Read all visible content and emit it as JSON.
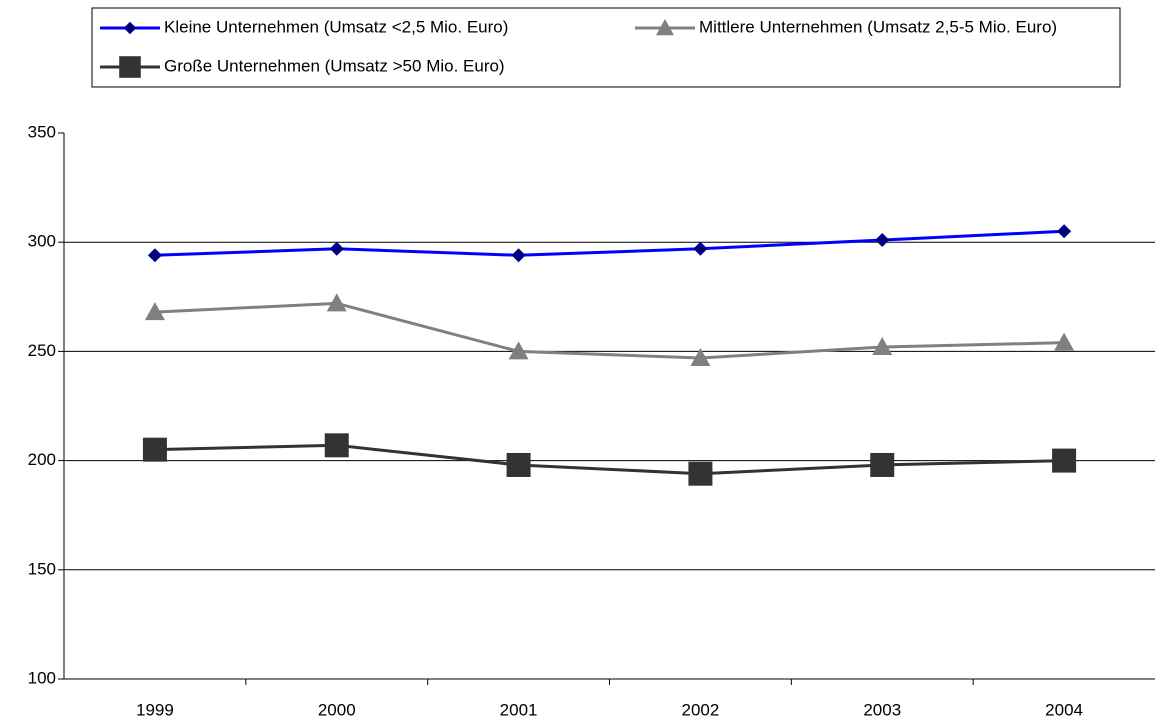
{
  "chart_data": {
    "type": "line",
    "categories": [
      "1999",
      "2000",
      "2001",
      "2002",
      "2003",
      "2004"
    ],
    "series": [
      {
        "name": "Kleine Unternehmen (Umsatz <2,5 Mio. Euro)",
        "color": "#0000ff",
        "marker_color": "#000080",
        "marker": "diamond",
        "values": [
          294,
          297,
          294,
          297,
          301,
          305
        ]
      },
      {
        "name": "Mittlere Unternehmen (Umsatz 2,5-5 Mio. Euro)",
        "color": "#808080",
        "marker_color": "#808080",
        "marker": "triangle",
        "values": [
          268,
          272,
          250,
          247,
          252,
          254
        ]
      },
      {
        "name": "Große Unternehmen (Umsatz >50 Mio. Euro)",
        "color": "#333333",
        "marker_color": "#333333",
        "marker": "square",
        "values": [
          205,
          207,
          198,
          194,
          198,
          200
        ]
      }
    ],
    "ylim": [
      100,
      350
    ],
    "yticks": [
      100,
      150,
      200,
      250,
      300,
      350
    ],
    "grid": true
  }
}
